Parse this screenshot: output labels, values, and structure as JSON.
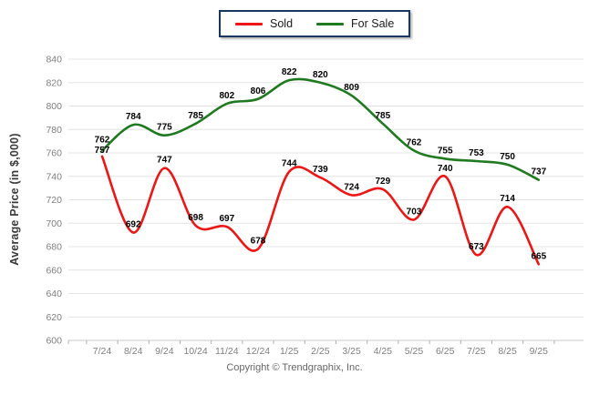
{
  "page": {
    "background": "#ffffff"
  },
  "legend": {
    "items": [
      {
        "label": "Sold",
        "color": "#ee1515"
      },
      {
        "label": "For Sale",
        "color": "#1f7a1f"
      }
    ],
    "border_color": "#17375e"
  },
  "footer": {
    "copyright": "Copyright © Trendgraphix, Inc."
  },
  "chart_data": {
    "type": "line",
    "title": "",
    "xlabel": "",
    "ylabel": "Average Price (in $,000)",
    "categories": [
      "7/24",
      "8/24",
      "9/24",
      "10/24",
      "11/24",
      "12/24",
      "1/25",
      "2/25",
      "3/25",
      "4/25",
      "5/25",
      "6/25",
      "7/25",
      "8/25",
      "9/25"
    ],
    "series": [
      {
        "name": "Sold",
        "color": "#ee1515",
        "values": [
          757,
          692,
          747,
          698,
          697,
          678,
          744,
          739,
          724,
          729,
          703,
          740,
          673,
          714,
          665
        ]
      },
      {
        "name": "For Sale",
        "color": "#1f7a1f",
        "values": [
          762,
          784,
          775,
          785,
          802,
          806,
          822,
          820,
          809,
          785,
          762,
          755,
          753,
          750,
          737
        ]
      }
    ],
    "ylim": [
      600,
      840
    ],
    "ytick_step": 20,
    "grid": true,
    "grid_color": "#e4e4e4",
    "axis_label_color": "#7f7f7f",
    "data_label_color": "#000000",
    "legend_position": "top-center",
    "smooth": true
  }
}
